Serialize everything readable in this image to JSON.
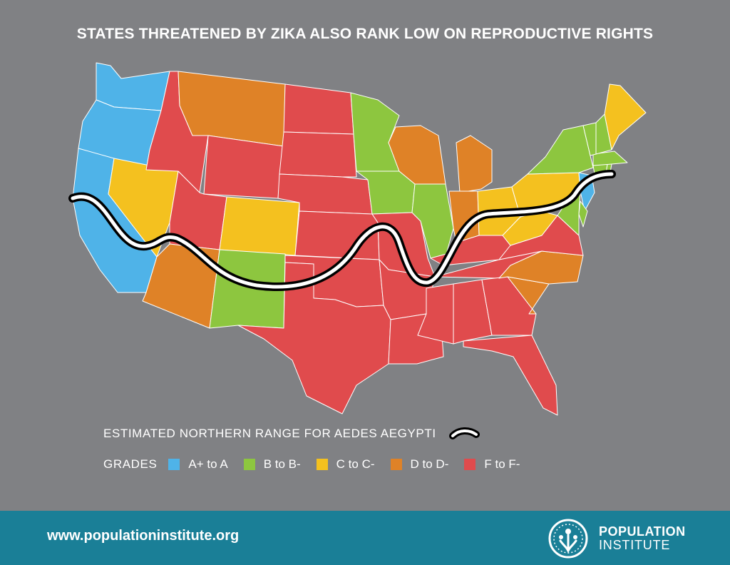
{
  "title": "STATES THREATENED BY ZIKA ALSO RANK LOW ON REPRODUCTIVE RIGHTS",
  "range_legend": {
    "label": "ESTIMATED NORTHERN RANGE FOR AEDES AEGYPTI"
  },
  "grades": {
    "label": "GRADES",
    "items": [
      {
        "label": "A+ to A",
        "color": "#4fb3e8"
      },
      {
        "label": "B to B-",
        "color": "#8dc63f"
      },
      {
        "label": "C to C-",
        "color": "#f4c11f"
      },
      {
        "label": "D to D-",
        "color": "#df8227"
      },
      {
        "label": "F to F-",
        "color": "#e04b4d"
      }
    ]
  },
  "states": [
    {
      "id": "WA",
      "grade": "A"
    },
    {
      "id": "OR",
      "grade": "A"
    },
    {
      "id": "CA",
      "grade": "A"
    },
    {
      "id": "ID",
      "grade": "F"
    },
    {
      "id": "MT",
      "grade": "D"
    },
    {
      "id": "WY",
      "grade": "F"
    },
    {
      "id": "NV",
      "grade": "C"
    },
    {
      "id": "UT",
      "grade": "F"
    },
    {
      "id": "CO",
      "grade": "C"
    },
    {
      "id": "AZ",
      "grade": "D"
    },
    {
      "id": "NM",
      "grade": "B"
    },
    {
      "id": "ND",
      "grade": "F"
    },
    {
      "id": "SD",
      "grade": "F"
    },
    {
      "id": "NE",
      "grade": "F"
    },
    {
      "id": "KS",
      "grade": "F"
    },
    {
      "id": "OK",
      "grade": "F"
    },
    {
      "id": "TX",
      "grade": "F"
    },
    {
      "id": "MN",
      "grade": "B"
    },
    {
      "id": "IA",
      "grade": "B"
    },
    {
      "id": "MO",
      "grade": "F"
    },
    {
      "id": "AR",
      "grade": "F"
    },
    {
      "id": "LA",
      "grade": "F"
    },
    {
      "id": "WI",
      "grade": "D"
    },
    {
      "id": "IL",
      "grade": "B"
    },
    {
      "id": "MI",
      "grade": "D"
    },
    {
      "id": "IN",
      "grade": "D"
    },
    {
      "id": "OH",
      "grade": "C"
    },
    {
      "id": "KY",
      "grade": "F"
    },
    {
      "id": "TN",
      "grade": "F"
    },
    {
      "id": "MS",
      "grade": "F"
    },
    {
      "id": "AL",
      "grade": "F"
    },
    {
      "id": "GA",
      "grade": "F"
    },
    {
      "id": "FL",
      "grade": "F"
    },
    {
      "id": "SC",
      "grade": "D"
    },
    {
      "id": "NC",
      "grade": "D"
    },
    {
      "id": "VA",
      "grade": "F"
    },
    {
      "id": "WV",
      "grade": "C"
    },
    {
      "id": "PA",
      "grade": "C"
    },
    {
      "id": "NY",
      "grade": "B"
    },
    {
      "id": "NJ",
      "grade": "A"
    },
    {
      "id": "DE",
      "grade": "B"
    },
    {
      "id": "MD",
      "grade": "B"
    },
    {
      "id": "CT",
      "grade": "B"
    },
    {
      "id": "RI",
      "grade": "B"
    },
    {
      "id": "MA",
      "grade": "B"
    },
    {
      "id": "VT",
      "grade": "B"
    },
    {
      "id": "NH",
      "grade": "B"
    },
    {
      "id": "ME",
      "grade": "C"
    }
  ],
  "grade_colors": {
    "A": "#4fb3e8",
    "B": "#8dc63f",
    "C": "#f4c11f",
    "D": "#df8227",
    "F": "#e04b4d"
  },
  "footer": {
    "url": "www.populationinstitute.org",
    "logo_line1": "POPULATION",
    "logo_line2": "INSTITUTE",
    "color": "#1a7f97"
  }
}
